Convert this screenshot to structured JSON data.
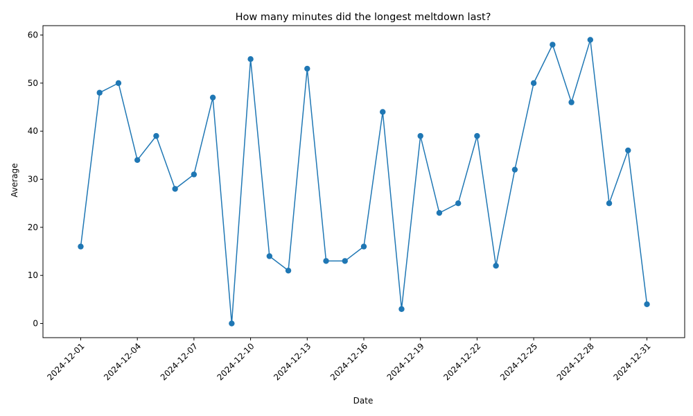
{
  "chart_data": {
    "type": "line",
    "title": "How many minutes did the longest meltdown last?",
    "xlabel": "Date",
    "ylabel": "Average",
    "x": [
      "2024-12-01",
      "2024-12-02",
      "2024-12-03",
      "2024-12-04",
      "2024-12-05",
      "2024-12-06",
      "2024-12-07",
      "2024-12-08",
      "2024-12-09",
      "2024-12-10",
      "2024-12-11",
      "2024-12-12",
      "2024-12-13",
      "2024-12-14",
      "2024-12-15",
      "2024-12-16",
      "2024-12-17",
      "2024-12-18",
      "2024-12-19",
      "2024-12-20",
      "2024-12-21",
      "2024-12-22",
      "2024-12-23",
      "2024-12-24",
      "2024-12-25",
      "2024-12-26",
      "2024-12-27",
      "2024-12-28",
      "2024-12-29",
      "2024-12-30",
      "2024-12-31"
    ],
    "series": [
      {
        "values": [
          16,
          48,
          50,
          34,
          39,
          28,
          31,
          47,
          0,
          55,
          14,
          11,
          53,
          13,
          13,
          16,
          44,
          3,
          39,
          23,
          25,
          39,
          12,
          32,
          50,
          58,
          46,
          59,
          25,
          36,
          4
        ],
        "color": "#1f77b4",
        "marker": "circle"
      }
    ],
    "x_tick_labels": [
      "2024-12-01",
      "2024-12-04",
      "2024-12-07",
      "2024-12-10",
      "2024-12-13",
      "2024-12-16",
      "2024-12-19",
      "2024-12-22",
      "2024-12-25",
      "2024-12-28",
      "2024-12-31"
    ],
    "y_ticks": [
      0,
      10,
      20,
      30,
      40,
      50,
      60
    ],
    "xlim": [
      "2024-11-29",
      "2025-01-02"
    ],
    "ylim": [
      -2.95,
      61.95
    ],
    "grid": false,
    "legend": "none"
  }
}
